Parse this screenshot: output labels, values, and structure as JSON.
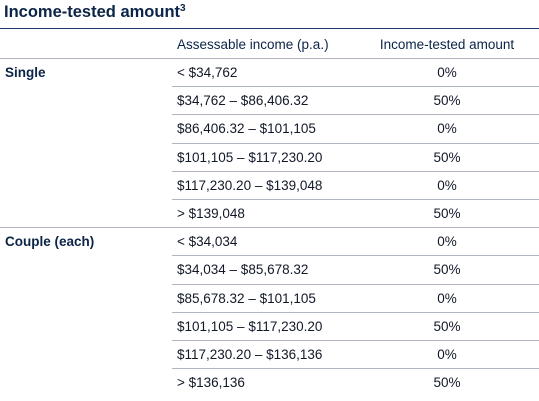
{
  "title": "Income-tested amount",
  "title_superscript": "3",
  "headers": {
    "group": "",
    "income": "Assessable income (p.a.)",
    "amount": "Income-tested amount"
  },
  "groups": [
    {
      "label": "Single",
      "rows": [
        {
          "income": "< $34,762",
          "amount": "0%"
        },
        {
          "income": "$34,762 – $86,406.32",
          "amount": "50%"
        },
        {
          "income": "$86,406.32 – $101,105",
          "amount": "0%"
        },
        {
          "income": "$101,105 – $117,230.20",
          "amount": "50%"
        },
        {
          "income": "$117,230.20 – $139,048",
          "amount": "0%"
        },
        {
          "income": "> $139,048",
          "amount": "50%"
        }
      ]
    },
    {
      "label": "Couple (each)",
      "rows": [
        {
          "income": "< $34,034",
          "amount": "0%"
        },
        {
          "income": "$34,034 – $85,678.32",
          "amount": "50%"
        },
        {
          "income": "$85,678.32 – $101,105",
          "amount": "0%"
        },
        {
          "income": "$101,105 – $117,230.20",
          "amount": "50%"
        },
        {
          "income": "$117,230.20 – $136,136",
          "amount": "0%"
        },
        {
          "income": "> $136,136",
          "amount": "50%"
        }
      ]
    }
  ]
}
